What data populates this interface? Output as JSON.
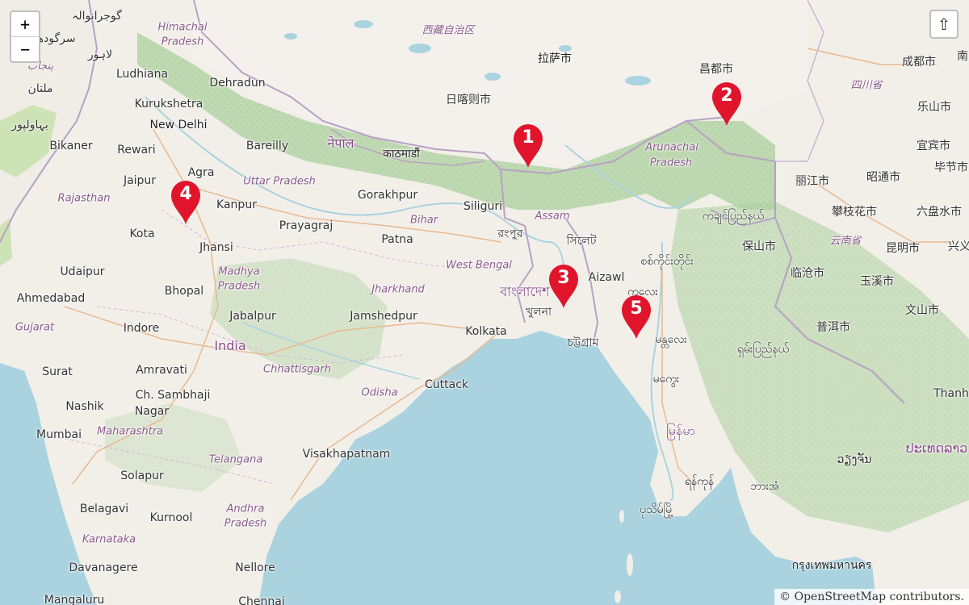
{
  "map": {
    "controls": {
      "zoom_in": "+",
      "zoom_out": "−",
      "share": "⇧"
    },
    "attribution": {
      "prefix": "©",
      "link": "OpenStreetMap",
      "suffix": "contributors."
    },
    "markers": [
      {
        "label": "1"
      },
      {
        "label": "2"
      },
      {
        "label": "3"
      },
      {
        "label": "4"
      },
      {
        "label": "5"
      }
    ],
    "labels": {
      "ludhiana": "Ludhiana",
      "dehradun": "Dehradun",
      "kurukshetra": "Kurukshetra",
      "new_delhi": "New Delhi",
      "bikaner": "Bikaner",
      "rewari": "Rewari",
      "bareilly": "Bareilly",
      "jaipur": "Jaipur",
      "agra": "Agra",
      "kanpur": "Kanpur",
      "gorakhpur": "Gorakhpur",
      "kota": "Kota",
      "jhansi": "Jhansi",
      "prayagraj": "Prayagraj",
      "patna": "Patna",
      "udaipur": "Udaipur",
      "bhopal": "Bhopal",
      "ahmedabad": "Ahmedabad",
      "jabalpur": "Jabalpur",
      "jamshedpur": "Jamshedpur",
      "indore": "Indore",
      "kolkata": "Kolkata",
      "india": "India",
      "surat": "Surat",
      "amravati": "Amravati",
      "cuttack": "Cuttack",
      "nashik": "Nashik",
      "ch_sambhaji": "Ch. Sambhaji",
      "nagar": "Nagar",
      "mumbai": "Mumbai",
      "visakhapatnam": "Visakhapatnam",
      "solapur": "Solapur",
      "belagavi": "Belagavi",
      "kurnool": "Kurnool",
      "davanagere": "Davanagere",
      "nellore": "Nellore",
      "mangaluru": "Mangaluru",
      "chennai": "Chennai",
      "siliguri": "Siliguri",
      "aizawl": "Aizawl",
      "lhasa": "拉萨市",
      "shigatse": "日喀则市",
      "chengdu": "成都市",
      "changdu": "昌都市",
      "leshan": "乐山市",
      "yibin": "宜宾市",
      "bijie": "毕节市",
      "lijiang": "丽江市",
      "zhaotong": "昭通市",
      "panzhihua": "攀枝花市",
      "liupanshui": "六盘水市",
      "baoshan": "保山市",
      "kunming": "昆明市",
      "lincang": "临沧市",
      "yuxi": "玉溪市",
      "wenshan": "文山市",
      "puer": "普洱市",
      "sichuan": "四川省",
      "yunnan": "云南省",
      "xizang": "西藏自治区",
      "himachal": "Himachal",
      "pradesh_hp": "Pradesh",
      "rajasthan": "Rajasthan",
      "uttar_pradesh": "Uttar Pradesh",
      "bihar": "Bihar",
      "west_bengal": "West Bengal",
      "madhya": "Madhya",
      "pradesh_mp": "Pradesh",
      "jharkhand": "Jharkhand",
      "gujarat": "Gujarat",
      "chhattisgarh": "Chhattisgarh",
      "odisha": "Odisha",
      "maharashtra": "Maharashtra",
      "telangana": "Telangana",
      "andhra": "Andhra",
      "pradesh_ap": "Pradesh",
      "karnataka": "Karnataka",
      "arunachal": "Arunachal",
      "pradesh_ar": "Pradesh",
      "assam": "Assam",
      "nepal": "नेपाल",
      "kathmandu": "काठमाडौं",
      "bangladesh": "বাংলাদেশ",
      "khulna": "খুলনা",
      "sylhet": "সিলেট",
      "rangpur": "রংপুর",
      "chattogram": "চট্টগ্রাম",
      "thailand": "Thanh",
      "laos": "ປະເທດລາວ",
      "vientiane": "ວຽງຈັນ",
      "bangkok": "กรุงเทพมหานคร",
      "gujranwala": "گوجرانوالہ",
      "sargodha": "سرگودھا",
      "lahore": "لاہور",
      "punjab": "پنجاب",
      "multan": "ملتان",
      "bahawalpur": "بہاولپور",
      "myanmar": "မြန်မာ",
      "mandalay": "မန္တလေး",
      "magway": "မကွေး",
      "yangon": "ရန်ကုန်",
      "pathein": "ပုသိမ်မြို့",
      "kachin": "ကချင်ပြည်နယ်",
      "chin": "ချင်းပြည်နယ်",
      "sagaing": "စစ်ကိုင်းတိုင်း",
      "shan": "ရှမ်းပြည်နယ်",
      "bago": "ဘားအံ",
      "monywa": "ကလေး",
      "xing": "兴义",
      "na": "南"
    }
  }
}
